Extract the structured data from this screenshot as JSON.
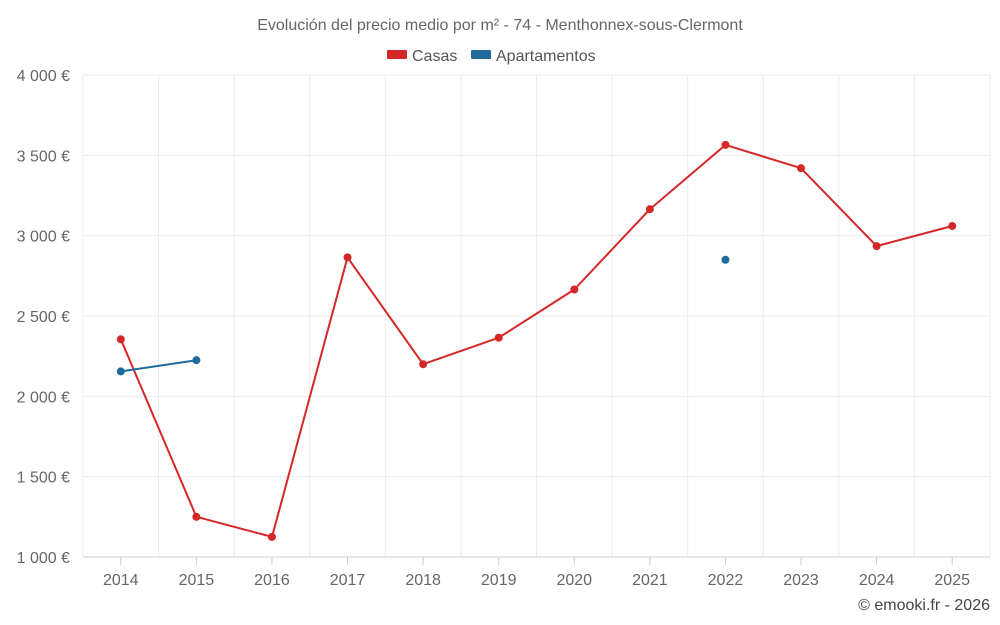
{
  "chart_data": {
    "type": "line",
    "title": "Evolución del precio medio por m² - 74 - Menthonnex-sous-Clermont",
    "categories": [
      "2014",
      "2015",
      "2016",
      "2017",
      "2018",
      "2019",
      "2020",
      "2021",
      "2022",
      "2023",
      "2024",
      "2025"
    ],
    "series": [
      {
        "name": "Casas",
        "color": "#d62728",
        "values": [
          2355,
          1250,
          1125,
          2865,
          2200,
          2365,
          2665,
          3165,
          3565,
          3420,
          2935,
          3060
        ]
      },
      {
        "name": "Apartamentos",
        "color": "#1f6b9c",
        "values": [
          2155,
          2225,
          null,
          null,
          null,
          null,
          null,
          null,
          2850,
          null,
          null,
          null
        ]
      }
    ],
    "ylim": [
      1000,
      4000
    ],
    "yticks": [
      1000,
      1500,
      2000,
      2500,
      3000,
      3500,
      4000
    ],
    "ytick_labels": [
      "1 000 €",
      "1 500 €",
      "2 000 €",
      "2 500 €",
      "3 000 €",
      "3 500 €",
      "4 000 €"
    ],
    "legend_position": "top-center",
    "grid": true,
    "xlabel": "",
    "ylabel": "",
    "credit": "© emooki.fr - 2026"
  }
}
